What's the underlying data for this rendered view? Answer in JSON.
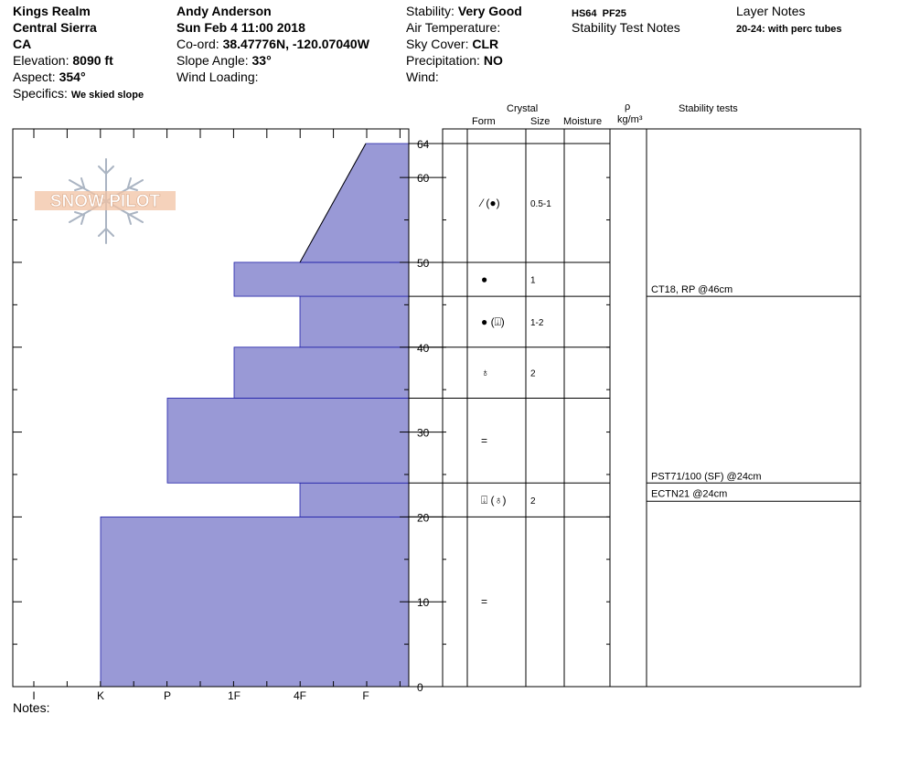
{
  "header": {
    "location_name": "Kings Realm",
    "region": "Central Sierra",
    "state": "CA",
    "elevation_label": "Elevation:",
    "elevation_value": "8090 ft",
    "aspect_label": "Aspect:",
    "aspect_value": "354°",
    "specifics_label": "Specifics:",
    "specifics_value": "We skied slope",
    "observer": "Andy Anderson",
    "datetime": "Sun Feb 4 11:00 2018",
    "coord_label": "Co-ord:",
    "coord_value": "38.47776N, -120.07040W",
    "slope_label": "Slope Angle:",
    "slope_value": "33°",
    "wind_loading_label": "Wind Loading:",
    "stability_label": "Stability:",
    "stability_value": "Very Good",
    "air_temp_label": "Air Temperature:",
    "sky_label": "Sky Cover:",
    "sky_value": "CLR",
    "precip_label": "Precipitation:",
    "precip_value": "NO",
    "wind_label": "Wind:",
    "hs_pf": "HS64  PF25",
    "stability_test_notes_label": "Stability Test Notes",
    "layer_notes_label": "Layer Notes",
    "layer_notes_value": "20-24: with perc tubes"
  },
  "columns": {
    "crystal": "Crystal",
    "form": "Form",
    "size": "Size",
    "moisture": "Moisture",
    "rho": "ρ",
    "density_unit": "kg/m³",
    "stability_tests": "Stability tests"
  },
  "logo_text": "SNOW PILOT",
  "notes_label": "Notes:",
  "colors": {
    "hardness_fill": "#9999d6",
    "hardness_stroke": "#1f1fa8"
  },
  "chart_data": {
    "type": "area",
    "title": "",
    "xlabel": "",
    "ylabel": "",
    "x_categories": [
      "I",
      "K",
      "P",
      "1F",
      "4F",
      "F"
    ],
    "y_tick_labels": [
      0,
      10,
      20,
      30,
      40,
      50,
      60,
      64
    ],
    "ylim": [
      0,
      64
    ],
    "hardness_profile": [
      {
        "bottom": 0,
        "top": 20,
        "hardness": "K"
      },
      {
        "bottom": 20,
        "top": 24,
        "hardness": "4F"
      },
      {
        "bottom": 24,
        "top": 34,
        "hardness": "P"
      },
      {
        "bottom": 34,
        "top": 40,
        "hardness": "1F"
      },
      {
        "bottom": 40,
        "top": 46,
        "hardness": "4F"
      },
      {
        "bottom": 46,
        "top": 50,
        "hardness": "1F"
      },
      {
        "bottom": 50,
        "top": 64,
        "hardness_bottom": "4F",
        "hardness_top": "F"
      }
    ],
    "layer_boundaries": [
      20,
      24,
      34,
      40,
      46,
      50,
      64
    ],
    "layers": [
      {
        "bottom": 50,
        "top": 64,
        "form": "⁄ (●)",
        "size": "0.5-1"
      },
      {
        "bottom": 46,
        "top": 50,
        "form": "●",
        "size": "1"
      },
      {
        "bottom": 40,
        "top": 46,
        "form": "● (⍗)",
        "size": "1-2"
      },
      {
        "bottom": 34,
        "top": 40,
        "form": "♁",
        "size": "2"
      },
      {
        "bottom": 24,
        "top": 34,
        "form": "=",
        "size": ""
      },
      {
        "bottom": 20,
        "top": 24,
        "form": "⍗ (♁)",
        "size": "2"
      },
      {
        "bottom": 0,
        "top": 20,
        "form": "=",
        "size": ""
      }
    ],
    "stability_tests": [
      {
        "depth": 46,
        "text": "CT18, RP @46cm"
      },
      {
        "depth": 24,
        "text": "PST71/100 (SF) @24cm"
      },
      {
        "depth": 24,
        "text": "ECTN21 @24cm"
      }
    ]
  }
}
